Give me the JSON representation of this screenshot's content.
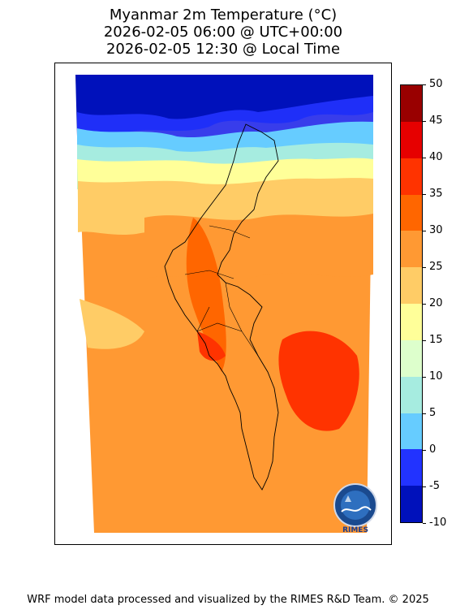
{
  "title": {
    "line1": "Myanmar 2m Temperature (°C)",
    "line2": "2026-02-05 06:00 @ UTC+00:00",
    "line3": "2026-02-05 12:30 @ Local Time"
  },
  "colorbar": {
    "ticks": [
      "50",
      "45",
      "40",
      "35",
      "30",
      "25",
      "20",
      "15",
      "10",
      "5",
      "0",
      "-5",
      "-10"
    ],
    "colors": [
      "#990000",
      "#e60000",
      "#ff3300",
      "#ff6600",
      "#ff9933",
      "#ffcc66",
      "#ffff99",
      "#ddffcc",
      "#a6ece0",
      "#66ccff",
      "#2233ff",
      "#0011bb"
    ]
  },
  "logo": {
    "text": "RIMES"
  },
  "footer": "WRF model data processed and visualized by the RIMES R&D Team. © 2025"
}
